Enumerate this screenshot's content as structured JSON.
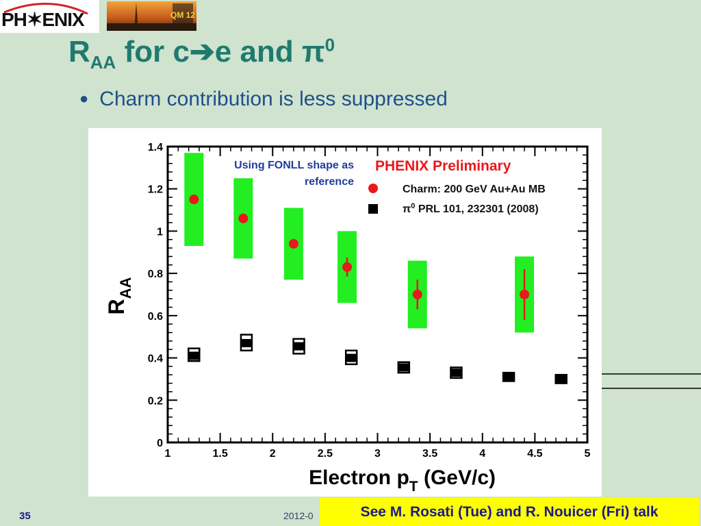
{
  "header": {
    "logo_text": "PH✶ENIX",
    "photo_badge": "QM 12"
  },
  "slide": {
    "title_main": "R",
    "title_sub": "AA",
    "title_rest_1": " for c",
    "title_arrow": "➔",
    "title_rest_2": "e and ",
    "title_pi": "π",
    "title_sup": "0",
    "bullet": "Charm contribution is less suppressed"
  },
  "footer": {
    "slide_number": "35",
    "date": "2012-0",
    "callout": "See M. Rosati (Tue) and R. Nouicer (Fri) talk"
  },
  "colors": {
    "background": "#cfe3cf",
    "title": "#1f7a6e",
    "bullet": "#1f4f8a",
    "charm_points": "#e8181c",
    "systematics_band": "#22ee22",
    "pi0_points": "#000000",
    "callout_bg": "#ffff00"
  },
  "chart_data": {
    "type": "scatter",
    "xlabel": "Electron p",
    "xlabel_sub": "T",
    "xlabel_units": " (GeV/c)",
    "ylabel": "R",
    "ylabel_sub": "AA",
    "xlim": [
      1,
      5
    ],
    "ylim": [
      0,
      1.4
    ],
    "xticks": [
      "1",
      "1.5",
      "2",
      "2.5",
      "3",
      "3.5",
      "4",
      "4.5",
      "5"
    ],
    "yticks": [
      "0",
      "0.2",
      "0.4",
      "0.6",
      "0.8",
      "1",
      "1.2",
      "1.4"
    ],
    "annotation": "Using FONLL shape as reference",
    "annotation_line1": "Using FONLL shape as",
    "annotation_line2": "reference",
    "preliminary_label": "PHENIX Preliminary",
    "legend_position": "top-right",
    "series": [
      {
        "name": "Charm: 200 GeV Au+Au MB",
        "marker": "circle",
        "x": [
          1.25,
          1.72,
          2.2,
          2.71,
          3.38,
          4.4
        ],
        "y": [
          1.15,
          1.06,
          0.94,
          0.83,
          0.7,
          0.7
        ],
        "stat_err": [
          0.0,
          0.0,
          0.0,
          0.045,
          0.07,
          0.12
        ],
        "sys_low": [
          0.93,
          0.87,
          0.77,
          0.66,
          0.54,
          0.52
        ],
        "sys_high": [
          1.37,
          1.25,
          1.11,
          1.0,
          0.86,
          0.88
        ]
      },
      {
        "name": "π⁰ PRL 101, 232301 (2008)",
        "legend_pi": "π",
        "legend_sup": "0",
        "legend_rest": " PRL 101, 232301 (2008)",
        "marker": "square",
        "x": [
          1.25,
          1.75,
          2.25,
          2.75,
          3.25,
          3.75,
          4.25,
          4.75
        ],
        "y": [
          0.41,
          0.47,
          0.455,
          0.4,
          0.355,
          0.33,
          0.31,
          0.3
        ],
        "sys_low": [
          0.385,
          0.435,
          0.42,
          0.37,
          0.33,
          0.305,
          0.29,
          0.28
        ],
        "sys_high": [
          0.445,
          0.51,
          0.49,
          0.435,
          0.38,
          0.355,
          0.33,
          0.32
        ]
      }
    ]
  }
}
